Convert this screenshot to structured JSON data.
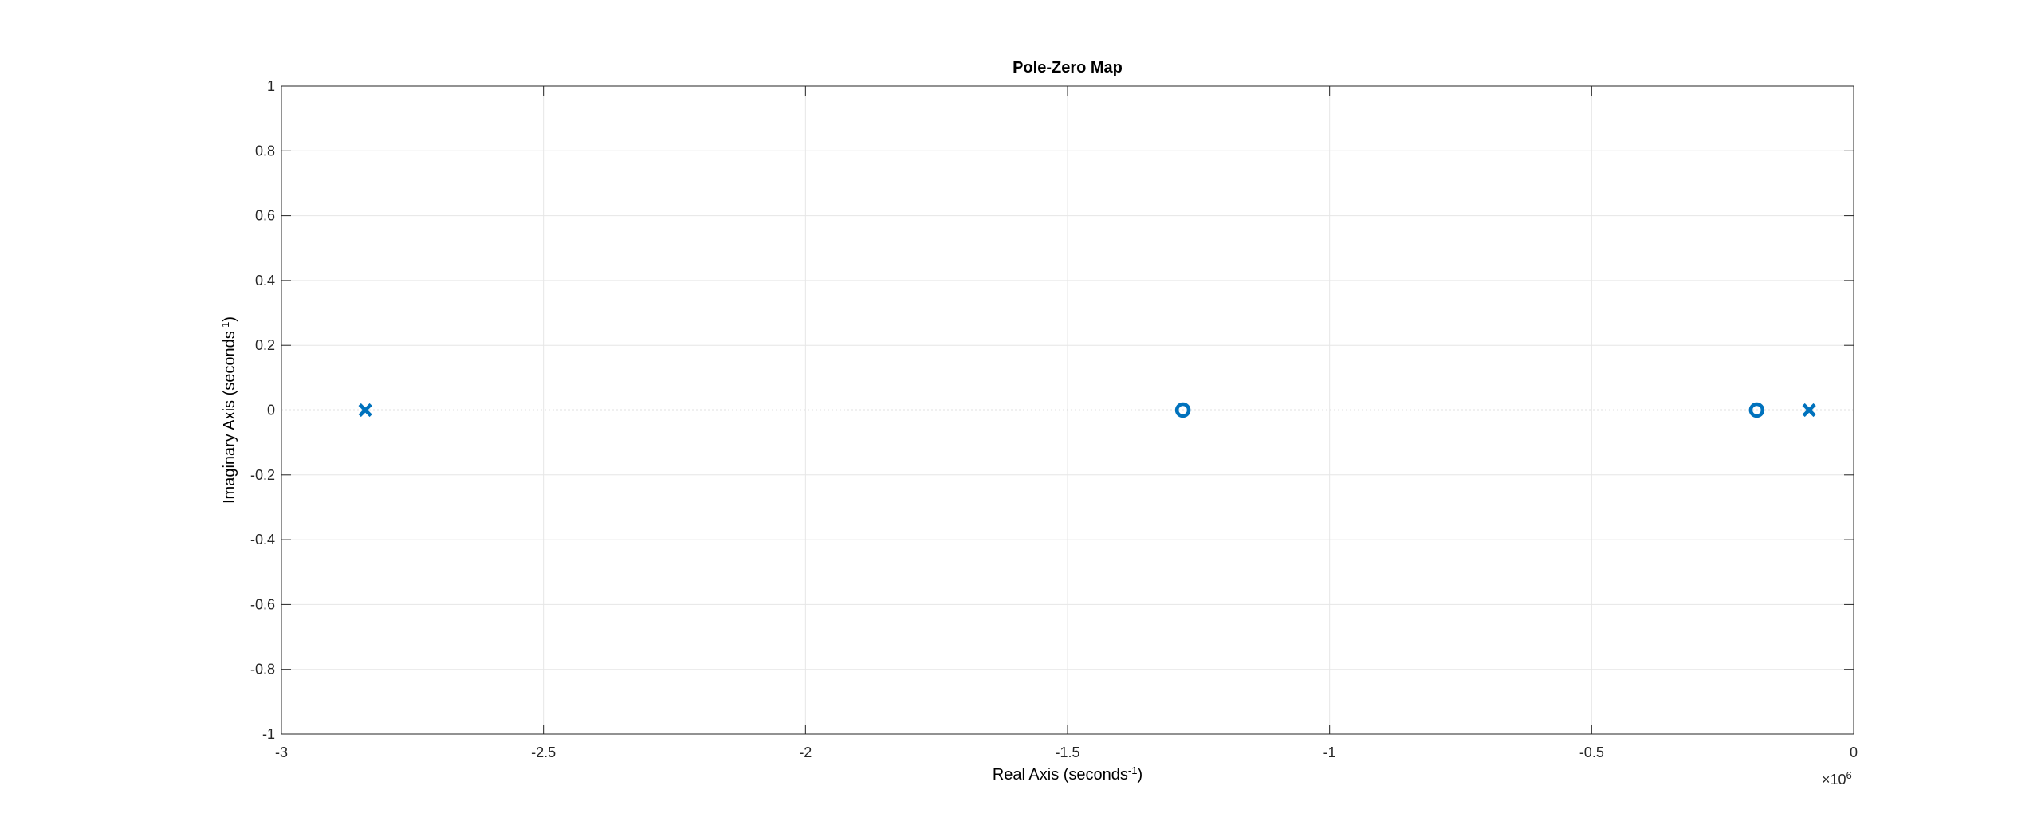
{
  "chart_data": {
    "type": "scatter",
    "title": "Pole-Zero Map",
    "xlabel": {
      "text": "Real Axis (seconds",
      "superscript": "-1",
      "suffix": ")"
    },
    "ylabel": {
      "text": "Imaginary Axis (seconds",
      "superscript": "-1",
      "suffix": ")"
    },
    "x_exponent": {
      "base": "×10",
      "power": "6"
    },
    "xlim": [
      -3,
      0
    ],
    "ylim": [
      -1,
      1
    ],
    "x_scale_factor": 1000000,
    "xticks": [
      -3,
      -2.5,
      -2,
      -1.5,
      -1,
      -0.5,
      0
    ],
    "xtick_labels": [
      "-3",
      "-2.5",
      "-2",
      "-1.5",
      "-1",
      "-0.5",
      "0"
    ],
    "yticks": [
      -1,
      -0.8,
      -0.6,
      -0.4,
      -0.2,
      0,
      0.2,
      0.4,
      0.6,
      0.8,
      1
    ],
    "ytick_labels": [
      "-1",
      "-0.8",
      "-0.6",
      "-0.4",
      "-0.2",
      "0",
      "0.2",
      "0.4",
      "0.6",
      "0.8",
      "1"
    ],
    "grid": true,
    "series": [
      {
        "marker": "x",
        "color": "#0072BD",
        "points": [
          {
            "x": -2.84,
            "y": 0
          },
          {
            "x": -0.085,
            "y": 0
          }
        ]
      },
      {
        "marker": "o",
        "color": "#0072BD",
        "points": [
          {
            "x": -1.28,
            "y": 0
          },
          {
            "x": -0.185,
            "y": 0
          }
        ]
      }
    ]
  }
}
